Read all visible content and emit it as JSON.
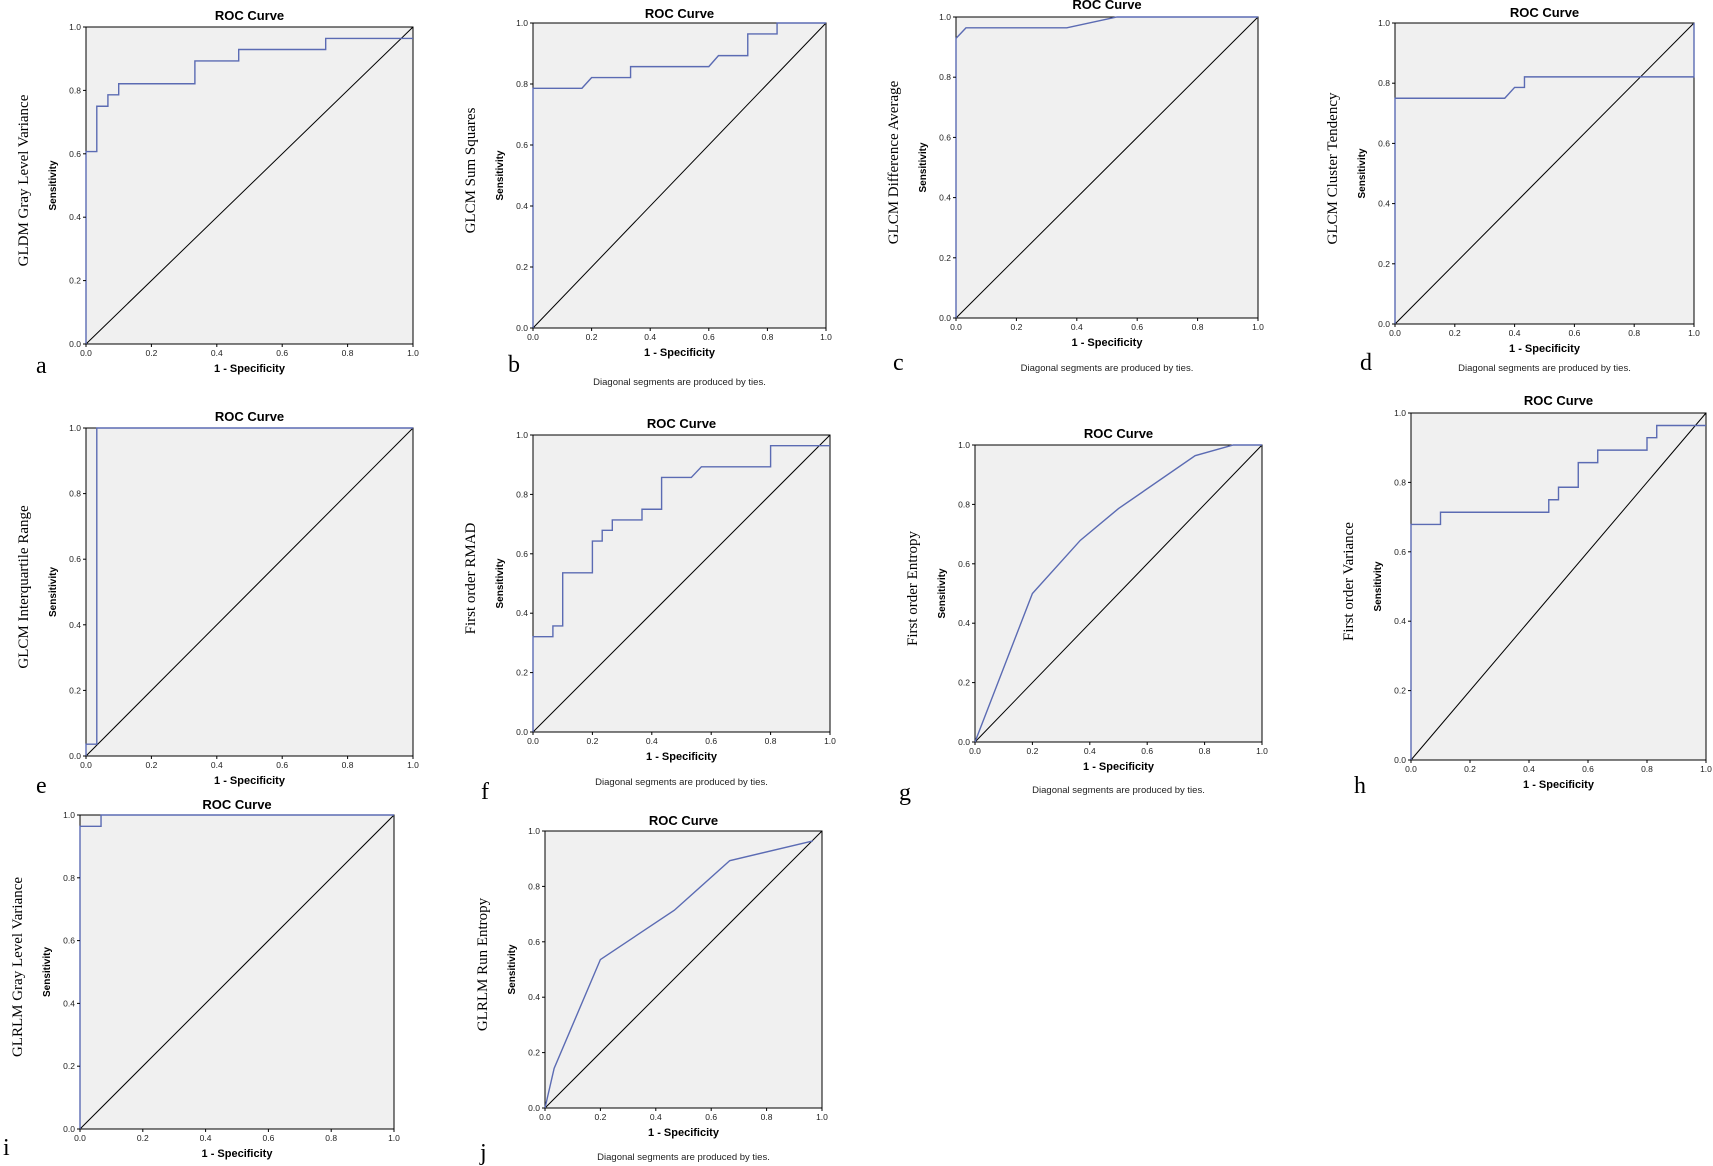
{
  "chart_data": [
    {
      "panel": "a",
      "type": "line",
      "title": "ROC Curve",
      "xlabel": "1 - Specificity",
      "ylabel": "Sensitivity",
      "feature_label": "GLDM Gray Level Variance",
      "xlim": [
        0,
        1
      ],
      "ylim": [
        0,
        1
      ],
      "xticks": [
        "0.0",
        "0.2",
        "0.4",
        "0.6",
        "0.8",
        "1.0"
      ],
      "yticks": [
        "0.0",
        "0.2",
        "0.4",
        "0.6",
        "0.8",
        "1.0"
      ],
      "note": "",
      "series": [
        {
          "x": [
            0,
            0,
            0.033,
            0.033,
            0.067,
            0.067,
            0.1,
            0.1,
            0.333,
            0.333,
            0.467,
            0.467,
            0.733,
            0.733,
            1
          ],
          "y": [
            0,
            0.607,
            0.607,
            0.75,
            0.75,
            0.786,
            0.786,
            0.821,
            0.821,
            0.893,
            0.893,
            0.929,
            0.929,
            0.964,
            0.964
          ]
        }
      ]
    },
    {
      "panel": "b",
      "type": "line",
      "title": "ROC Curve",
      "xlabel": "1 - Specificity",
      "ylabel": "Sensitivity",
      "feature_label": "GLCM Sum Squares",
      "xlim": [
        0,
        1
      ],
      "ylim": [
        0,
        1
      ],
      "xticks": [
        "0.0",
        "0.2",
        "0.4",
        "0.6",
        "0.8",
        "1.0"
      ],
      "yticks": [
        "0.0",
        "0.2",
        "0.4",
        "0.6",
        "0.8",
        "1.0"
      ],
      "note": "Diagonal segments are produced by ties.",
      "series": [
        {
          "x": [
            0,
            0,
            0.167,
            0.2,
            0.333,
            0.333,
            0.6,
            0.633,
            0.733,
            0.733,
            0.833,
            0.833,
            1
          ],
          "y": [
            0,
            0.786,
            0.786,
            0.821,
            0.821,
            0.857,
            0.857,
            0.893,
            0.893,
            0.964,
            0.964,
            1,
            1
          ]
        }
      ]
    },
    {
      "panel": "c",
      "type": "line",
      "title": "ROC Curve",
      "xlabel": "1 - Specificity",
      "ylabel": "Sensitivity",
      "feature_label": "GLCM Difference Average",
      "xlim": [
        0,
        1
      ],
      "ylim": [
        0,
        1
      ],
      "xticks": [
        "0.0",
        "0.2",
        "0.4",
        "0.6",
        "0.8",
        "1.0"
      ],
      "yticks": [
        "0.0",
        "0.2",
        "0.4",
        "0.6",
        "0.8",
        "1.0"
      ],
      "note": "Diagonal segments are produced by ties.",
      "series": [
        {
          "x": [
            0,
            0,
            0.033,
            0.367,
            0.533,
            1
          ],
          "y": [
            0,
            0.929,
            0.964,
            0.964,
            1,
            1
          ]
        }
      ]
    },
    {
      "panel": "d",
      "type": "line",
      "title": "ROC Curve",
      "xlabel": "1 - Specificity",
      "ylabel": "Sensitivity",
      "feature_label": "GLCM Cluster Tendency",
      "xlim": [
        0,
        1
      ],
      "ylim": [
        0,
        1
      ],
      "xticks": [
        "0.0",
        "0.2",
        "0.4",
        "0.6",
        "0.8",
        "1.0"
      ],
      "yticks": [
        "0.0",
        "0.2",
        "0.4",
        "0.6",
        "0.8",
        "1.0"
      ],
      "note": "Diagonal segments are produced by ties.",
      "series": [
        {
          "x": [
            0,
            0,
            0.367,
            0.4,
            0.433,
            0.433,
            1,
            1
          ],
          "y": [
            0,
            0.75,
            0.75,
            0.786,
            0.786,
            0.821,
            0.821,
            1
          ]
        }
      ]
    },
    {
      "panel": "e",
      "type": "line",
      "title": "ROC Curve",
      "xlabel": "1 - Specificity",
      "ylabel": "Sensitivity",
      "feature_label": "GLCM Interquartile Range",
      "xlim": [
        0,
        1
      ],
      "ylim": [
        0,
        1
      ],
      "xticks": [
        "0.0",
        "0.2",
        "0.4",
        "0.6",
        "0.8",
        "1.0"
      ],
      "yticks": [
        "0.0",
        "0.2",
        "0.4",
        "0.6",
        "0.8",
        "1.0"
      ],
      "note": "",
      "series": [
        {
          "x": [
            0,
            0,
            0.033,
            0.033,
            1
          ],
          "y": [
            0,
            0.036,
            0.036,
            1,
            1
          ]
        }
      ]
    },
    {
      "panel": "f",
      "type": "line",
      "title": "ROC Curve",
      "xlabel": "1 - Specificity",
      "ylabel": "Sensitivity",
      "feature_label": "First order RMAD",
      "xlim": [
        0,
        1
      ],
      "ylim": [
        0,
        1
      ],
      "xticks": [
        "0.0",
        "0.2",
        "0.4",
        "0.6",
        "0.8",
        "1.0"
      ],
      "yticks": [
        "0.0",
        "0.2",
        "0.4",
        "0.6",
        "0.8",
        "1.0"
      ],
      "note": "Diagonal segments are produced by ties.",
      "series": [
        {
          "x": [
            0,
            0,
            0.067,
            0.067,
            0.1,
            0.1,
            0.2,
            0.2,
            0.233,
            0.233,
            0.267,
            0.267,
            0.367,
            0.367,
            0.433,
            0.433,
            0.533,
            0.567,
            0.8,
            0.8,
            1
          ],
          "y": [
            0,
            0.321,
            0.321,
            0.357,
            0.357,
            0.536,
            0.536,
            0.643,
            0.643,
            0.679,
            0.679,
            0.714,
            0.714,
            0.75,
            0.75,
            0.857,
            0.857,
            0.893,
            0.893,
            0.964,
            0.964
          ]
        }
      ]
    },
    {
      "panel": "g",
      "type": "line",
      "title": "ROC Curve",
      "xlabel": "1 - Specificity",
      "ylabel": "Sensitivity",
      "feature_label": "First order Entropy",
      "xlim": [
        0,
        1
      ],
      "ylim": [
        0,
        1
      ],
      "xticks": [
        "0.0",
        "0.2",
        "0.4",
        "0.6",
        "0.8",
        "1.0"
      ],
      "yticks": [
        "0.0",
        "0.2",
        "0.4",
        "0.6",
        "0.8",
        "1.0"
      ],
      "note": "Diagonal segments are produced by ties.",
      "series": [
        {
          "x": [
            0,
            0.2,
            0.367,
            0.5,
            0.767,
            0.9,
            1
          ],
          "y": [
            0,
            0.5,
            0.679,
            0.786,
            0.964,
            1,
            1
          ]
        }
      ]
    },
    {
      "panel": "h",
      "type": "line",
      "title": "ROC Curve",
      "xlabel": "1 - Specificity",
      "ylabel": "Sensitivity",
      "feature_label": "First order Variance",
      "xlim": [
        0,
        1
      ],
      "ylim": [
        0,
        1
      ],
      "xticks": [
        "0.0",
        "0.2",
        "0.4",
        "0.6",
        "0.8",
        "1.0"
      ],
      "yticks": [
        "0.0",
        "0.2",
        "0.4",
        "0.6",
        "0.8",
        "1.0"
      ],
      "note": "",
      "series": [
        {
          "x": [
            0,
            0,
            0.1,
            0.1,
            0.467,
            0.467,
            0.5,
            0.5,
            0.567,
            0.567,
            0.633,
            0.633,
            0.8,
            0.8,
            0.833,
            0.833,
            1
          ],
          "y": [
            0,
            0.679,
            0.679,
            0.714,
            0.714,
            0.75,
            0.75,
            0.786,
            0.786,
            0.857,
            0.857,
            0.893,
            0.893,
            0.929,
            0.929,
            0.964,
            0.964
          ]
        }
      ]
    },
    {
      "panel": "i",
      "type": "line",
      "title": "ROC Curve",
      "xlabel": "1 - Specificity",
      "ylabel": "Sensitivity",
      "feature_label": "GLRLM Gray Level Variance",
      "xlim": [
        0,
        1
      ],
      "ylim": [
        0,
        1
      ],
      "xticks": [
        "0.0",
        "0.2",
        "0.4",
        "0.6",
        "0.8",
        "1.0"
      ],
      "yticks": [
        "0.0",
        "0.2",
        "0.4",
        "0.6",
        "0.8",
        "1.0"
      ],
      "note": "",
      "series": [
        {
          "x": [
            0,
            0,
            0.067,
            0.067,
            1
          ],
          "y": [
            0,
            0.964,
            0.964,
            1,
            1
          ]
        }
      ]
    },
    {
      "panel": "j",
      "type": "line",
      "title": "ROC Curve",
      "xlabel": "1 - Specificity",
      "ylabel": "Sensitivity",
      "feature_label": "GLRLM Run Entropy",
      "xlim": [
        0,
        1
      ],
      "ylim": [
        0,
        1
      ],
      "xticks": [
        "0.0",
        "0.2",
        "0.4",
        "0.6",
        "0.8",
        "1.0"
      ],
      "yticks": [
        "0.0",
        "0.2",
        "0.4",
        "0.6",
        "0.8",
        "1.0"
      ],
      "note": "Diagonal segments are produced by ties.",
      "series": [
        {
          "x": [
            0,
            0.033,
            0.2,
            0.467,
            0.667,
            0.967
          ],
          "y": [
            0,
            0.143,
            0.536,
            0.714,
            0.893,
            0.964
          ]
        }
      ]
    }
  ],
  "colors": {
    "curve": "#5b6bb3",
    "plot_bg": "#f0f0f0",
    "reference": "#000000"
  }
}
